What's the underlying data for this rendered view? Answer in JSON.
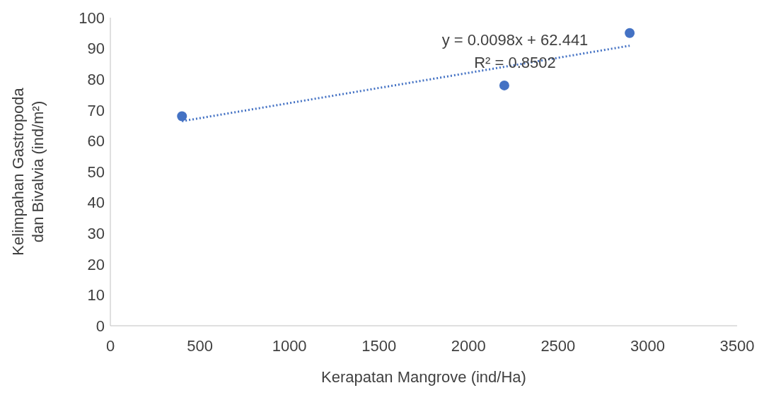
{
  "chart_data": {
    "type": "scatter",
    "xlabel": "Kerapatan Mangrove (ind/Ha)",
    "ylabel": "Kelimpahan Gastropoda dan Bivalvia (ind/m²)",
    "xlim": [
      0,
      3500
    ],
    "xticks": [
      0,
      500,
      1000,
      1500,
      2000,
      2500,
      3000,
      3500
    ],
    "ylim": [
      0,
      100
    ],
    "yticks": [
      0,
      10,
      20,
      30,
      40,
      50,
      60,
      70,
      80,
      90,
      100
    ],
    "grid": false,
    "legend": false,
    "marker": "circle",
    "annotations": [
      "y = 0.0098x + 62.441",
      "R² = 0.8502"
    ],
    "series": [
      {
        "color": "#4472c4",
        "x": [
          400,
          2200,
          2900
        ],
        "values": [
          68,
          78,
          95
        ]
      },
      {
        "type": "line",
        "color": "#4472c4",
        "x": [
          400,
          2900
        ],
        "values": [
          66.4,
          90.9
        ],
        "line_style": "dotted",
        "marker": "none"
      }
    ]
  }
}
